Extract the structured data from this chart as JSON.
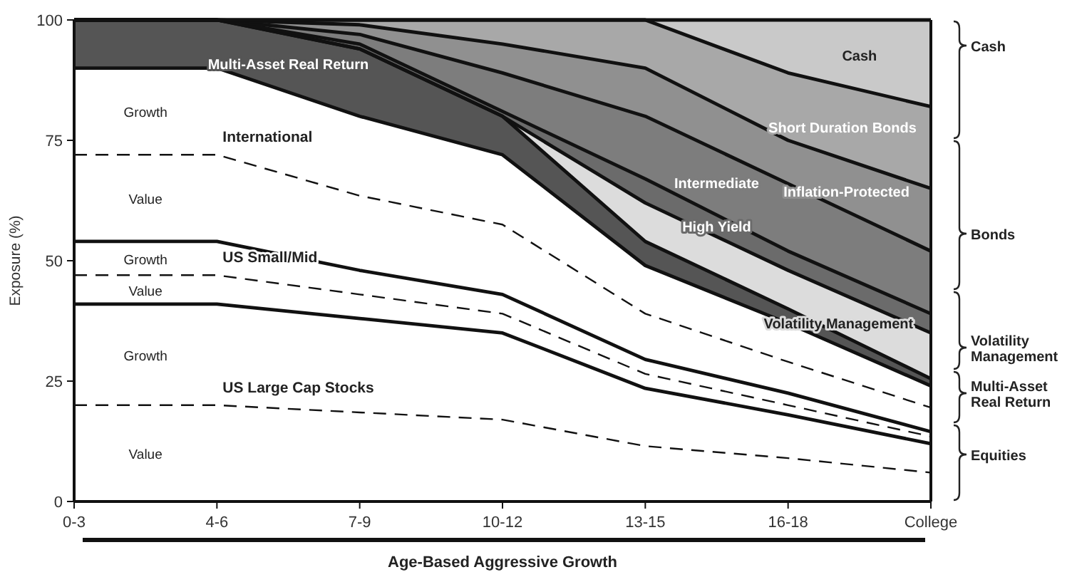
{
  "chart_data": {
    "type": "area",
    "stacked": true,
    "ylabel": "Exposure (%)",
    "xlabel": "Age-Based Aggressive Growth",
    "categories": [
      "0-3",
      "4-6",
      "7-9",
      "10-12",
      "13-15",
      "16-18",
      "College"
    ],
    "ylim": [
      0,
      100
    ],
    "yticks": [
      0,
      25,
      50,
      75,
      100
    ],
    "series": [
      {
        "name": "Value",
        "color": "#ffffff",
        "line_style": "dashed",
        "values": [
          20,
          20,
          18.5,
          17,
          11.5,
          9,
          6
        ]
      },
      {
        "name": "Growth",
        "color": "#ffffff",
        "line_style": "solid",
        "values": [
          21,
          21,
          19.5,
          18,
          12,
          9,
          6
        ]
      },
      {
        "name": "Value",
        "color": "#ffffff",
        "line_style": "dashed",
        "values": [
          6,
          6,
          5,
          4,
          3,
          2,
          1.5
        ]
      },
      {
        "name": "Growth",
        "color": "#ffffff",
        "line_style": "solid",
        "values": [
          7,
          7,
          5,
          4,
          3,
          2.5,
          1
        ]
      },
      {
        "name": "Value",
        "color": "#ffffff",
        "line_style": "dashed",
        "values": [
          18,
          18,
          15.5,
          14.5,
          9.5,
          6.5,
          5
        ]
      },
      {
        "name": "Growth",
        "color": "#ffffff",
        "line_style": "solid",
        "values": [
          18,
          18,
          16.5,
          14.5,
          10,
          8,
          4.5
        ]
      },
      {
        "name": "Multi-Asset Real Return",
        "color": "#555555",
        "line_style": "solid",
        "values": [
          10,
          10,
          14,
          8,
          5,
          3,
          1.5
        ]
      },
      {
        "name": "Volatility Management",
        "color": "#dcdcdc",
        "line_style": "solid",
        "values": [
          0,
          0,
          0,
          0,
          8,
          8,
          9.5
        ]
      },
      {
        "name": "High Yield",
        "color": "#6b6b6b",
        "line_style": "solid",
        "values": [
          0,
          0,
          1,
          1,
          5,
          4,
          4
        ]
      },
      {
        "name": "Intermediate",
        "color": "#7d7d7d",
        "line_style": "solid",
        "values": [
          0,
          0,
          2,
          8,
          13,
          14,
          13
        ]
      },
      {
        "name": "Inflation-Protected",
        "color": "#909090",
        "line_style": "solid",
        "values": [
          0,
          0,
          2,
          6,
          10,
          9,
          13
        ]
      },
      {
        "name": "Short Duration Bonds",
        "color": "#a8a8a8",
        "line_style": "solid",
        "values": [
          0,
          0,
          1,
          5,
          10,
          14,
          17
        ]
      },
      {
        "name": "Cash",
        "color": "#c9c9c9",
        "line_style": "solid",
        "values": [
          0,
          0,
          0,
          0,
          0,
          11,
          18
        ]
      }
    ],
    "annotations": [
      {
        "text": "US Large Cap Stocks",
        "x": "4-6",
        "y": 20
      },
      {
        "text": "US Small/Mid",
        "x": "4-6",
        "y": 47
      },
      {
        "text": "International",
        "x": "4-6",
        "y": 72
      },
      "Cash",
      "Bonds",
      "Volatility Management",
      "Multi-Asset Real Return",
      "Equities"
    ]
  }
}
